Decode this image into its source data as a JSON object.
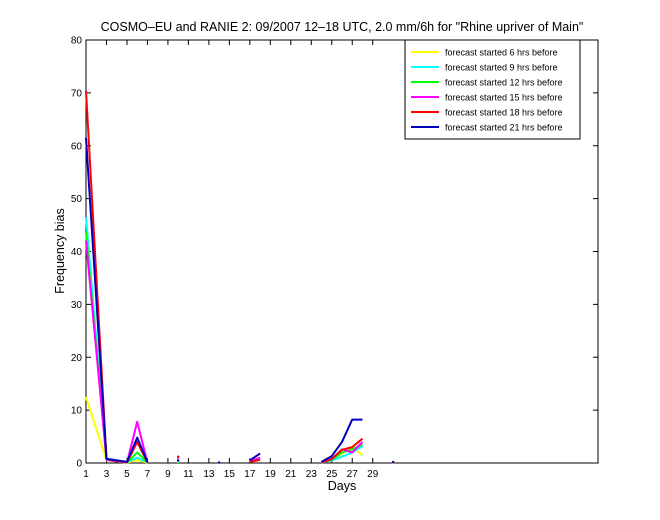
{
  "chart_data": {
    "type": "line",
    "title": "COSMO–EU and RANIE 2: 09/2007 12–18 UTC, 2.0 mm/6h for \"Rhine upriver of Main\"",
    "xlabel": "Days",
    "ylabel": "Frequency bias",
    "xlim": [
      1,
      51
    ],
    "ylim": [
      0,
      80
    ],
    "xticks": [
      1,
      3,
      5,
      7,
      9,
      11,
      13,
      15,
      17,
      19,
      21,
      23,
      25,
      27,
      29
    ],
    "xtick_labels": [
      "1",
      "3",
      "5",
      "7",
      "9",
      "11",
      "13",
      "15",
      "17",
      "19",
      "21",
      "23",
      "25",
      "27",
      "29"
    ],
    "yticks": [
      0,
      10,
      20,
      30,
      40,
      50,
      60,
      70,
      80
    ],
    "ytick_labels": [
      "0",
      "10",
      "20",
      "30",
      "40",
      "50",
      "60",
      "70",
      "80"
    ],
    "grid": false,
    "legend_position": "top-right",
    "series": [
      {
        "name": "forecast started 6 hrs before",
        "color": "#ffff00",
        "points": [
          [
            1,
            12.5
          ],
          [
            3,
            0.5
          ],
          [
            4,
            0.3
          ],
          [
            5,
            0.1
          ],
          [
            6,
            0.5
          ],
          [
            7,
            0.1
          ],
          [
            null,
            null
          ],
          [
            10,
            0.2
          ],
          [
            null,
            null
          ],
          [
            24,
            0.1
          ],
          [
            25,
            0.6
          ],
          [
            26,
            1.8
          ],
          [
            27,
            3.0
          ],
          [
            28,
            1.5
          ],
          [
            null,
            null
          ],
          [
            31,
            0.1
          ]
        ]
      },
      {
        "name": "forecast started 9 hrs before",
        "color": "#00ffff",
        "points": [
          [
            1,
            46.5
          ],
          [
            3,
            0.6
          ],
          [
            4,
            0.3
          ],
          [
            5,
            0.1
          ],
          [
            6,
            1.0
          ],
          [
            7,
            0.1
          ],
          [
            null,
            null
          ],
          [
            10,
            0.3
          ],
          [
            null,
            null
          ],
          [
            17,
            0.2
          ],
          [
            18,
            0.8
          ],
          [
            null,
            null
          ],
          [
            24,
            0.1
          ],
          [
            25,
            0.5
          ],
          [
            26,
            1.2
          ],
          [
            27,
            2.0
          ],
          [
            28,
            3.2
          ],
          [
            null,
            null
          ],
          [
            31,
            0.1
          ]
        ]
      },
      {
        "name": "forecast started 12 hrs before",
        "color": "#00ff00",
        "points": [
          [
            1,
            43.7
          ],
          [
            3,
            0.6
          ],
          [
            4,
            0.3
          ],
          [
            5,
            0.1
          ],
          [
            6,
            2.0
          ],
          [
            7,
            0.1
          ],
          [
            null,
            null
          ],
          [
            10,
            0.4
          ],
          [
            null,
            null
          ],
          [
            24,
            0.1
          ],
          [
            25,
            0.6
          ],
          [
            26,
            2.0
          ],
          [
            27,
            2.6
          ],
          [
            28,
            3.5
          ],
          [
            null,
            null
          ],
          [
            31,
            0.1
          ]
        ]
      },
      {
        "name": "forecast started 15 hrs before",
        "color": "#ff00ff",
        "points": [
          [
            1,
            42.0
          ],
          [
            3,
            0.6
          ],
          [
            4,
            0.3
          ],
          [
            5,
            0.1
          ],
          [
            6,
            7.8
          ],
          [
            7,
            0.1
          ],
          [
            null,
            null
          ],
          [
            10,
            1.0
          ],
          [
            null,
            null
          ],
          [
            17,
            0.3
          ],
          [
            18,
            1.0
          ],
          [
            null,
            null
          ],
          [
            24,
            0.1
          ],
          [
            25,
            0.7
          ],
          [
            26,
            2.6
          ],
          [
            27,
            2.0
          ],
          [
            28,
            4.0
          ],
          [
            null,
            null
          ],
          [
            31,
            0.1
          ]
        ]
      },
      {
        "name": "forecast started 18 hrs before",
        "color": "#ff0000",
        "points": [
          [
            1,
            70.4
          ],
          [
            3,
            0.8
          ],
          [
            4,
            0.4
          ],
          [
            5,
            0.1
          ],
          [
            6,
            4.0
          ],
          [
            7,
            0.1
          ],
          [
            null,
            null
          ],
          [
            10,
            1.2
          ],
          [
            null,
            null
          ],
          [
            17,
            0.2
          ],
          [
            18,
            0.6
          ],
          [
            null,
            null
          ],
          [
            24,
            0.1
          ],
          [
            25,
            0.8
          ],
          [
            26,
            2.5
          ],
          [
            27,
            3.0
          ],
          [
            28,
            4.6
          ],
          [
            null,
            null
          ],
          [
            31,
            0.1
          ]
        ]
      },
      {
        "name": "forecast started 21 hrs before",
        "color": "#0000bb",
        "points": [
          [
            1,
            61.5
          ],
          [
            3,
            0.8
          ],
          [
            4,
            0.5
          ],
          [
            5,
            0.2
          ],
          [
            6,
            4.8
          ],
          [
            7,
            0.2
          ],
          [
            null,
            null
          ],
          [
            10,
            0.5
          ],
          [
            null,
            null
          ],
          [
            14,
            0.1
          ],
          [
            null,
            null
          ],
          [
            17,
            0.5
          ],
          [
            18,
            1.8
          ],
          [
            null,
            null
          ],
          [
            24,
            0.2
          ],
          [
            25,
            1.3
          ],
          [
            26,
            4.0
          ],
          [
            27,
            8.2
          ],
          [
            28,
            8.2
          ],
          [
            null,
            null
          ],
          [
            31,
            0.2
          ]
        ]
      }
    ]
  }
}
